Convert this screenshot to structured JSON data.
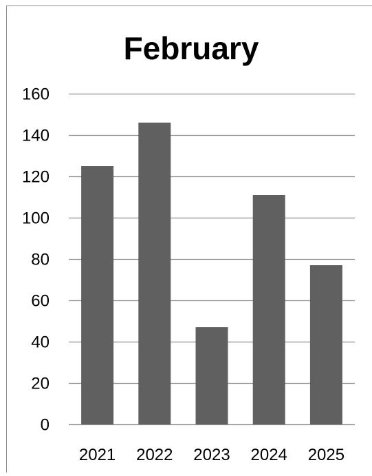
{
  "chart_data": {
    "type": "bar",
    "title": "February",
    "categories": [
      "2021",
      "2022",
      "2023",
      "2024",
      "2025"
    ],
    "values": [
      125,
      146,
      47,
      111,
      77
    ],
    "ylim": [
      0,
      160
    ],
    "yticks": [
      0,
      20,
      40,
      60,
      80,
      100,
      120,
      140,
      160
    ],
    "grid": true,
    "legend": "none",
    "colors": {
      "bar": "#606060",
      "grid": "#8c8c8c",
      "text": "#000000",
      "frame": "#8c8c8c"
    }
  }
}
